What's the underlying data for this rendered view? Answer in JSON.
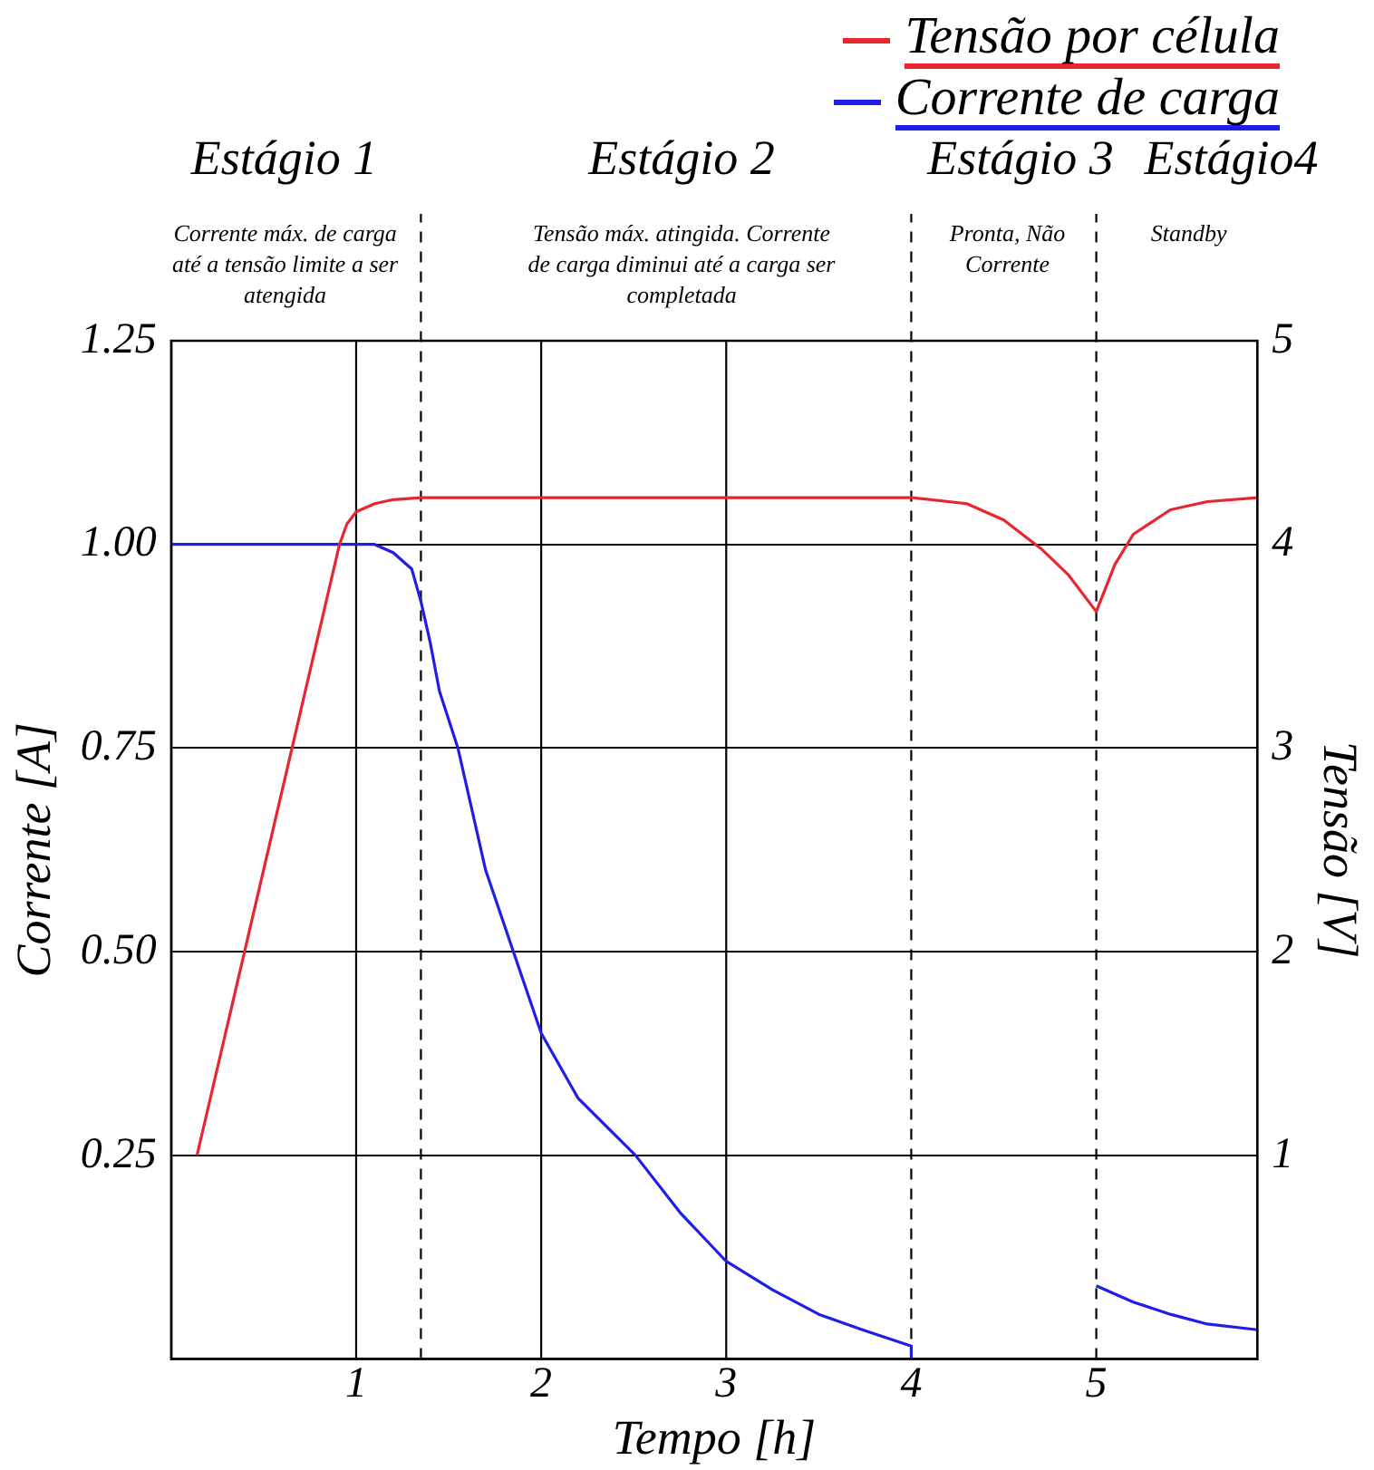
{
  "chart_data": {
    "type": "line",
    "xlabel": "Tempo [h]",
    "ylabel": "Corrente [A]",
    "y2label": "Tensão [V]",
    "xlim": [
      0,
      5.87
    ],
    "xticks": [
      1,
      2,
      3,
      4,
      5
    ],
    "ylim": [
      0,
      1.25
    ],
    "yticks": [
      {
        "value": 0.25,
        "label": "0.25"
      },
      {
        "value": 0.5,
        "label": "0.50"
      },
      {
        "value": 0.75,
        "label": "0.75"
      },
      {
        "value": 1,
        "label": "1.00"
      },
      {
        "value": 1.25,
        "label": "1.25"
      }
    ],
    "y2lim": [
      0,
      5
    ],
    "y2ticks": [
      1,
      2,
      3,
      4,
      5
    ],
    "grid": "y",
    "legend": "top right",
    "marker": "none",
    "line_style": "solid",
    "series": [
      {
        "name": "Tensão por célula",
        "color": "#e8262f",
        "axis": "y2",
        "x": [
          0.14,
          0.91,
          0.95,
          1.0,
          1.1,
          1.2,
          1.35,
          2.0,
          3.0,
          4.0,
          4.3,
          4.5,
          4.7,
          4.85,
          5.0,
          5.1,
          5.2,
          5.4,
          5.6,
          5.87
        ],
        "values": [
          1,
          4.0,
          4.1,
          4.16,
          4.2,
          4.22,
          4.23,
          4.23,
          4.23,
          4.23,
          4.2,
          4.12,
          3.98,
          3.85,
          3.67,
          3.9,
          4.05,
          4.17,
          4.21,
          4.23
        ]
      },
      {
        "name": "Corrente de carga",
        "color": "#1e1ee8",
        "x": [
          0,
          0.5,
          1.0,
          1.1,
          1.2,
          1.3,
          1.35,
          1.4,
          1.45,
          1.55,
          1.7,
          1.85,
          2.0,
          2.2,
          2.51,
          2.75,
          3.0,
          3.25,
          3.5,
          3.75,
          4.0,
          4.0,
          4.5,
          5.0,
          5.2,
          5.4,
          5.6,
          5.87
        ],
        "values": [
          1,
          1,
          1,
          1,
          0.99,
          0.97,
          0.93,
          0.88,
          0.82,
          0.75,
          0.6,
          0.5,
          0.4,
          0.32,
          0.25,
          0.18,
          0.12,
          0.085,
          0.055,
          0.035,
          0.016,
          0,
          null,
          0.09,
          0.07,
          0.055,
          0.043,
          0.036
        ]
      }
    ],
    "ref_lines": [
      {
        "axis": "x",
        "value": 1,
        "color": "#000000",
        "line_style": "solid"
      },
      {
        "axis": "x",
        "value": 2,
        "color": "#000000",
        "line_style": "solid"
      },
      {
        "axis": "x",
        "value": 3,
        "color": "#000000",
        "line_style": "solid"
      },
      {
        "axis": "x",
        "value": 1.35,
        "color": "#000000",
        "line_style": "dashed"
      },
      {
        "axis": "x",
        "value": 4,
        "color": "#000000",
        "line_style": "dashed"
      },
      {
        "axis": "x",
        "value": 5,
        "color": "#000000",
        "line_style": "dashed"
      }
    ],
    "annotations": [
      "Estágio 1",
      "Corrente máx. de carga até a tensão limite a ser atengida",
      "Estágio 2",
      "Tensão máx. atingida. Corrente de carga diminui até a carga ser completada",
      "Estágio 3",
      "Pronta, Não Corrente",
      "Estágio4",
      "Standby"
    ]
  }
}
